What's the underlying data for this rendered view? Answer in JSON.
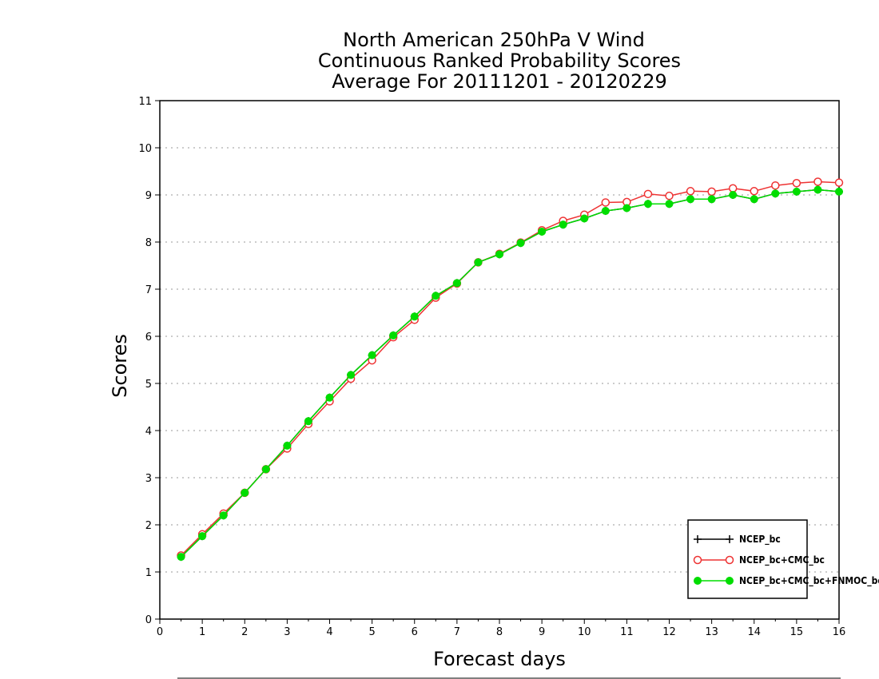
{
  "chart_data": {
    "type": "line",
    "title": [
      "North American 250hPa V Wind",
      "Continuous Ranked Probability Scores",
      "Average For 20111201 - 20120229"
    ],
    "xlabel": "Forecast days",
    "ylabel": "Scores",
    "xlim": [
      0,
      16
    ],
    "ylim": [
      0,
      11
    ],
    "xticks": [
      "0",
      "1",
      "2",
      "3",
      "4",
      "5",
      "6",
      "7",
      "8",
      "9",
      "10",
      "11",
      "12",
      "13",
      "14",
      "15",
      "16"
    ],
    "yticks": [
      "0",
      "1",
      "2",
      "3",
      "4",
      "5",
      "6",
      "7",
      "8",
      "9",
      "10",
      "11"
    ],
    "grid": "horizontal dotted",
    "legend_position": "bottom-right",
    "x": [
      0.5,
      1,
      1.5,
      2,
      2.5,
      3,
      3.5,
      4,
      4.5,
      5,
      5.5,
      6,
      6.5,
      7,
      7.5,
      8,
      8.5,
      9,
      9.5,
      10,
      10.5,
      11,
      11.5,
      12,
      12.5,
      13,
      13.5,
      14,
      14.5,
      15,
      15.5,
      16
    ],
    "series": [
      {
        "name": "NCEP_bc",
        "color": "#000000",
        "marker": "plus",
        "values": [
          1.32,
          1.76,
          2.2,
          2.68,
          3.18,
          3.68,
          4.2,
          4.7,
          5.18,
          5.6,
          6.02,
          6.42,
          6.86,
          7.13,
          7.57,
          7.74,
          7.98,
          8.22,
          8.37,
          8.5,
          8.66,
          8.72,
          8.81,
          8.81,
          8.91,
          8.91,
          9.0,
          8.91,
          9.03,
          9.07,
          9.11,
          9.07
        ]
      },
      {
        "name": "NCEP_bc+CMC_bc",
        "color": "#ee3333",
        "marker": "open-circle",
        "values": [
          1.35,
          1.8,
          2.24,
          2.68,
          3.18,
          3.62,
          4.14,
          4.62,
          5.1,
          5.49,
          5.98,
          6.35,
          6.82,
          7.12,
          7.57,
          7.75,
          7.99,
          8.25,
          8.45,
          8.58,
          8.84,
          8.85,
          9.02,
          8.98,
          9.08,
          9.07,
          9.14,
          9.08,
          9.2,
          9.25,
          9.28,
          9.26
        ]
      },
      {
        "name": "NCEP_bc+CMC_bc+FNMOC_bc",
        "color": "#00dd00",
        "marker": "filled-circle",
        "values": [
          1.32,
          1.76,
          2.2,
          2.68,
          3.18,
          3.68,
          4.2,
          4.7,
          5.18,
          5.6,
          6.02,
          6.42,
          6.86,
          7.13,
          7.57,
          7.74,
          7.98,
          8.22,
          8.37,
          8.5,
          8.66,
          8.72,
          8.81,
          8.81,
          8.91,
          8.91,
          9.0,
          8.91,
          9.03,
          9.07,
          9.11,
          9.07
        ]
      }
    ]
  }
}
